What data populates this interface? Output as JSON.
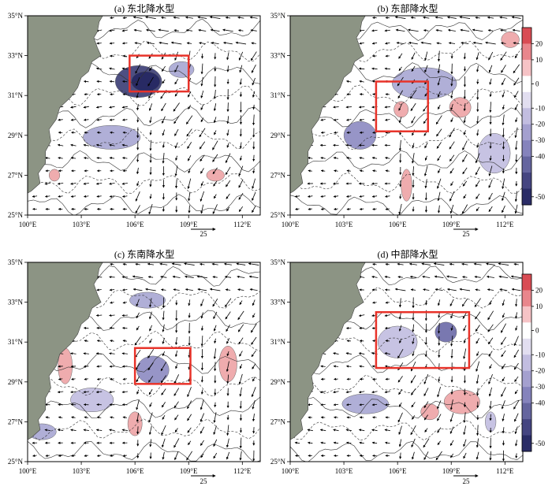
{
  "panels": [
    {
      "title": "(a) 东北降水型",
      "vector_ref": "25"
    },
    {
      "title": "(b) 东部降水型",
      "vector_ref": "25"
    },
    {
      "title": "(c) 东南降水型",
      "vector_ref": "25"
    },
    {
      "title": "(d) 中部降水型",
      "vector_ref": "25"
    }
  ],
  "axes": {
    "lon_ticks": [
      "100°E",
      "103°E",
      "106°E",
      "109°E",
      "112°E"
    ],
    "lat_ticks": [
      "25°N",
      "27°N",
      "29°N",
      "31°N",
      "33°N",
      "35°N"
    ]
  },
  "colorbar": {
    "ticks": [
      "20",
      "10",
      "0",
      "-10",
      "-20",
      "-30",
      "-40",
      "-50"
    ],
    "colors": [
      "#d94c54",
      "#e9868c",
      "#f6c3c6",
      "#ffffff",
      "#e2def0",
      "#c2bde0",
      "#a4a0cf",
      "#8583bc",
      "#65659f",
      "#454581",
      "#2a2c66"
    ]
  },
  "colors": {
    "land": "#8c9484",
    "box": "#e8332a",
    "positive": "#eea4a6",
    "negative": "#a8a7d3"
  },
  "boxes": [
    {
      "panel": "a",
      "lon": [
        105.7,
        109.0
      ],
      "lat": [
        31.2,
        33.0
      ]
    },
    {
      "panel": "b",
      "lon": [
        104.8,
        107.7
      ],
      "lat": [
        29.2,
        31.7
      ]
    },
    {
      "panel": "c",
      "lon": [
        106.0,
        109.1
      ],
      "lat": [
        28.9,
        30.7
      ]
    },
    {
      "panel": "d",
      "lon": [
        104.8,
        110.0
      ],
      "lat": [
        29.7,
        32.5
      ]
    }
  ]
}
